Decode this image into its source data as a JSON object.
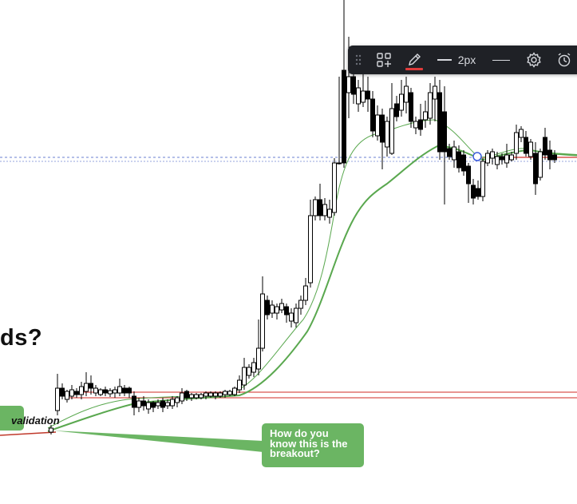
{
  "toolbar": {
    "drag_icon": "drag-handle-icon",
    "add_icon": "add-to-favorites-icon",
    "pencil_icon": "pencil-icon",
    "pencil_color": "#e03b3b",
    "line_width_label": "2px",
    "line_style_icon": "line-style-icon",
    "settings_icon": "gear-icon",
    "alert_icon": "alarm-clock-icon"
  },
  "annotations": {
    "heading_fragment": "ds?",
    "breakout_note": "How do you know this is the breakout?",
    "validation_label": "validation"
  },
  "colors": {
    "note_fill": "#6bb563",
    "ma_line": "#5aa84f",
    "support_line": "#d9534f",
    "price_line": "#6a7fd1",
    "candle_dark": "#000000",
    "toolbar_bg": "#1f2126"
  }
}
